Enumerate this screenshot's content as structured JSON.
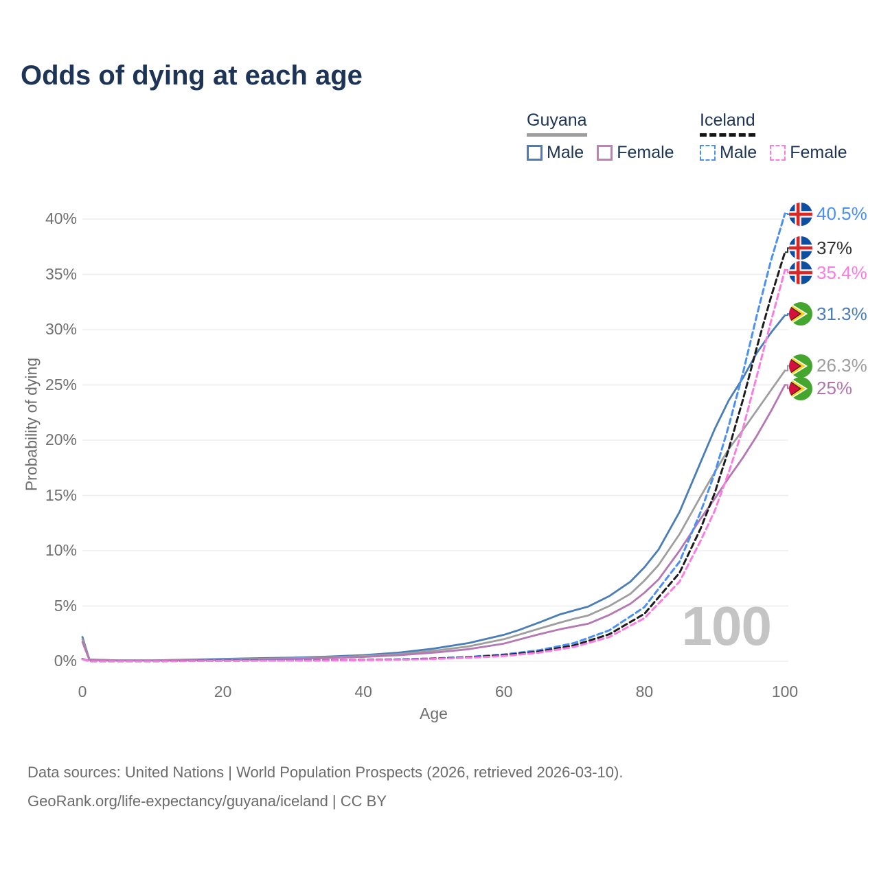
{
  "header": {
    "title": "Odds of dying at each age"
  },
  "legend": {
    "groups": [
      {
        "name": "Guyana",
        "line_style": "solid",
        "underline_color": "#9e9e9e",
        "items": [
          {
            "label": "Male",
            "color": "#4a7db8"
          },
          {
            "label": "Female",
            "color": "#c07fbc"
          }
        ]
      },
      {
        "name": "Iceland",
        "line_style": "dashed",
        "underline_color": "#161616",
        "items": [
          {
            "label": "Male",
            "color": "#4b8ff2"
          },
          {
            "label": "Female",
            "color": "#fa7ce0"
          }
        ]
      }
    ]
  },
  "chart_data": {
    "type": "line",
    "title": "Odds of dying at each age",
    "xlabel": "Age",
    "ylabel": "Probability of dying",
    "xlim": [
      0,
      100
    ],
    "ylim": [
      0,
      40
    ],
    "grid": "horizontal-only",
    "watermark": "100",
    "xticks": [
      0,
      20,
      40,
      60,
      80,
      100
    ],
    "yticks": [
      "0%",
      "5%",
      "10%",
      "15%",
      "20%",
      "25%",
      "30%",
      "35%",
      "40%"
    ],
    "unit": "percent",
    "series": [
      {
        "key": "guyana-male",
        "country": "Guyana",
        "sex": "Male",
        "color": "#4a7db8",
        "dash": false,
        "points": [
          [
            0,
            2.2
          ],
          [
            1,
            0.16
          ],
          [
            5,
            0.09
          ],
          [
            10,
            0.09
          ],
          [
            15,
            0.14
          ],
          [
            20,
            0.22
          ],
          [
            25,
            0.28
          ],
          [
            30,
            0.33
          ],
          [
            35,
            0.43
          ],
          [
            40,
            0.56
          ],
          [
            45,
            0.78
          ],
          [
            50,
            1.15
          ],
          [
            55,
            1.65
          ],
          [
            60,
            2.4
          ],
          [
            62,
            2.8
          ],
          [
            65,
            3.5
          ],
          [
            68,
            4.25
          ],
          [
            70,
            4.6
          ],
          [
            72,
            4.95
          ],
          [
            75,
            5.9
          ],
          [
            78,
            7.2
          ],
          [
            80,
            8.5
          ],
          [
            82,
            10.1
          ],
          [
            85,
            13.5
          ],
          [
            88,
            18
          ],
          [
            90,
            21
          ],
          [
            92,
            23.6
          ],
          [
            94,
            25.6
          ],
          [
            96,
            27.9
          ],
          [
            98,
            29.7
          ],
          [
            100,
            31.3
          ]
        ]
      },
      {
        "key": "guyana-both",
        "country": "Guyana",
        "sex": "Both sexes",
        "color": "#9e9e9e",
        "dash": false,
        "points": [
          [
            0,
            2.0
          ],
          [
            1,
            0.14
          ],
          [
            5,
            0.08
          ],
          [
            10,
            0.08
          ],
          [
            15,
            0.12
          ],
          [
            20,
            0.17
          ],
          [
            25,
            0.22
          ],
          [
            30,
            0.27
          ],
          [
            35,
            0.36
          ],
          [
            40,
            0.47
          ],
          [
            45,
            0.65
          ],
          [
            50,
            0.95
          ],
          [
            55,
            1.35
          ],
          [
            60,
            2.0
          ],
          [
            65,
            2.95
          ],
          [
            68,
            3.5
          ],
          [
            70,
            3.85
          ],
          [
            72,
            4.15
          ],
          [
            75,
            5.0
          ],
          [
            78,
            6.1
          ],
          [
            80,
            7.3
          ],
          [
            82,
            8.7
          ],
          [
            85,
            11.5
          ],
          [
            88,
            14.9
          ],
          [
            90,
            17.1
          ],
          [
            92,
            19.2
          ],
          [
            94,
            20.9
          ],
          [
            96,
            22.7
          ],
          [
            98,
            24.5
          ],
          [
            100,
            26.3
          ]
        ]
      },
      {
        "key": "guyana-female",
        "country": "Guyana",
        "sex": "Female",
        "color": "#b577b3",
        "dash": false,
        "points": [
          [
            0,
            1.75
          ],
          [
            1,
            0.12
          ],
          [
            5,
            0.07
          ],
          [
            10,
            0.07
          ],
          [
            15,
            0.1
          ],
          [
            20,
            0.13
          ],
          [
            25,
            0.17
          ],
          [
            30,
            0.22
          ],
          [
            35,
            0.3
          ],
          [
            40,
            0.4
          ],
          [
            45,
            0.55
          ],
          [
            50,
            0.78
          ],
          [
            55,
            1.1
          ],
          [
            60,
            1.6
          ],
          [
            65,
            2.45
          ],
          [
            68,
            2.9
          ],
          [
            70,
            3.15
          ],
          [
            72,
            3.4
          ],
          [
            75,
            4.2
          ],
          [
            78,
            5.2
          ],
          [
            80,
            6.2
          ],
          [
            82,
            7.4
          ],
          [
            85,
            10.0
          ],
          [
            88,
            12.9
          ],
          [
            90,
            14.7
          ],
          [
            92,
            16.6
          ],
          [
            94,
            18.4
          ],
          [
            96,
            20.4
          ],
          [
            98,
            22.6
          ],
          [
            100,
            25.0
          ]
        ]
      },
      {
        "key": "iceland-male",
        "country": "Iceland",
        "sex": "Male",
        "color": "#4b8ff2",
        "dash": true,
        "points": [
          [
            0,
            0.22
          ],
          [
            1,
            0.02
          ],
          [
            5,
            0.01
          ],
          [
            10,
            0.01
          ],
          [
            15,
            0.04
          ],
          [
            20,
            0.07
          ],
          [
            25,
            0.08
          ],
          [
            30,
            0.09
          ],
          [
            35,
            0.11
          ],
          [
            40,
            0.13
          ],
          [
            45,
            0.18
          ],
          [
            50,
            0.26
          ],
          [
            55,
            0.4
          ],
          [
            60,
            0.62
          ],
          [
            65,
            1.0
          ],
          [
            70,
            1.65
          ],
          [
            75,
            2.8
          ],
          [
            80,
            4.9
          ],
          [
            85,
            9.0
          ],
          [
            88,
            13.5
          ],
          [
            90,
            17.0
          ],
          [
            92,
            21.3
          ],
          [
            94,
            26.0
          ],
          [
            96,
            31.3
          ],
          [
            98,
            36.2
          ],
          [
            100,
            40.5
          ]
        ]
      },
      {
        "key": "iceland-both",
        "country": "Iceland",
        "sex": "Both sexes",
        "color": "#1c1c1c",
        "dash": true,
        "points": [
          [
            0,
            0.2
          ],
          [
            1,
            0.02
          ],
          [
            5,
            0.01
          ],
          [
            10,
            0.01
          ],
          [
            15,
            0.03
          ],
          [
            20,
            0.05
          ],
          [
            25,
            0.06
          ],
          [
            30,
            0.07
          ],
          [
            35,
            0.09
          ],
          [
            40,
            0.12
          ],
          [
            45,
            0.16
          ],
          [
            50,
            0.23
          ],
          [
            55,
            0.36
          ],
          [
            60,
            0.55
          ],
          [
            65,
            0.88
          ],
          [
            70,
            1.45
          ],
          [
            75,
            2.45
          ],
          [
            80,
            4.3
          ],
          [
            85,
            8.0
          ],
          [
            88,
            12.0
          ],
          [
            90,
            15.2
          ],
          [
            92,
            19.2
          ],
          [
            94,
            23.6
          ],
          [
            96,
            28.4
          ],
          [
            98,
            32.9
          ],
          [
            100,
            37.0
          ]
        ]
      },
      {
        "key": "iceland-female",
        "country": "Iceland",
        "sex": "Female",
        "color": "#fa7ce0",
        "dash": true,
        "points": [
          [
            0,
            0.18
          ],
          [
            1,
            0.02
          ],
          [
            5,
            0.01
          ],
          [
            10,
            0.01
          ],
          [
            15,
            0.02
          ],
          [
            20,
            0.04
          ],
          [
            25,
            0.05
          ],
          [
            30,
            0.06
          ],
          [
            35,
            0.08
          ],
          [
            40,
            0.1
          ],
          [
            45,
            0.14
          ],
          [
            50,
            0.21
          ],
          [
            55,
            0.32
          ],
          [
            60,
            0.48
          ],
          [
            65,
            0.78
          ],
          [
            70,
            1.3
          ],
          [
            75,
            2.2
          ],
          [
            80,
            3.9
          ],
          [
            85,
            7.2
          ],
          [
            88,
            10.9
          ],
          [
            90,
            13.6
          ],
          [
            92,
            17.1
          ],
          [
            94,
            21.0
          ],
          [
            96,
            25.8
          ],
          [
            98,
            30.7
          ],
          [
            100,
            35.4
          ]
        ]
      }
    ],
    "annotations": [
      {
        "series": "iceland-male",
        "label": "40.5%",
        "value": 40.5,
        "color": "#4b8ff2",
        "flag": "iceland"
      },
      {
        "series": "iceland-both",
        "label": "37%",
        "value": 37.0,
        "color": "#303030",
        "flag": "iceland"
      },
      {
        "series": "iceland-female",
        "label": "35.4%",
        "value": 35.4,
        "color": "#fa7ce0",
        "flag": "iceland"
      },
      {
        "series": "guyana-male",
        "label": "31.3%",
        "value": 31.3,
        "color": "#4a7db8",
        "flag": "guyana"
      },
      {
        "series": "guyana-both",
        "label": "26.3%",
        "value": 26.3,
        "color": "#9e9e9e",
        "flag": "guyana"
      },
      {
        "series": "guyana-female",
        "label": "25%",
        "value": 25.0,
        "color": "#b173ae",
        "flag": "guyana"
      }
    ]
  },
  "footer": {
    "line1": "Data sources: United Nations | World Population Prospects (2026, retrieved 2026-03-10).",
    "line2": "GeoRank.org/life-expectancy/guyana/iceland | CC BY"
  }
}
